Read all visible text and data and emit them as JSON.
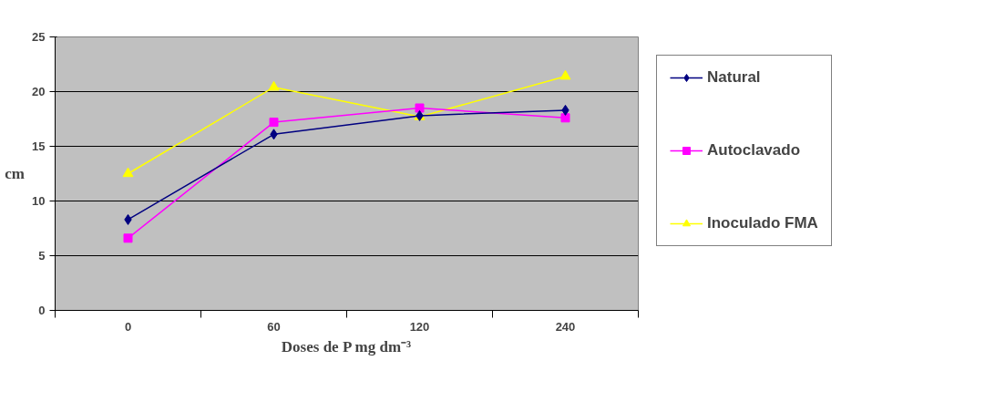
{
  "chart_data": {
    "type": "line",
    "xlabel": "Doses de P mg dm⁻³",
    "ylabel": "cm",
    "categories": [
      "0",
      "60",
      "120",
      "240"
    ],
    "series": [
      {
        "name": "Natural",
        "color": "#000080",
        "marker": "diamond",
        "values": [
          8.3,
          16.1,
          17.8,
          18.3
        ]
      },
      {
        "name": "Autoclavado",
        "color": "#ff00ff",
        "marker": "square",
        "values": [
          6.6,
          17.2,
          18.5,
          17.6
        ]
      },
      {
        "name": "Inoculado FMA",
        "color": "#ffff00",
        "marker": "triangle",
        "values": [
          12.5,
          20.4,
          17.7,
          21.4
        ]
      }
    ],
    "ylim": [
      0,
      25
    ],
    "yticks": [
      0,
      5,
      10,
      15,
      20,
      25
    ],
    "grid": "y",
    "legend": "right"
  }
}
